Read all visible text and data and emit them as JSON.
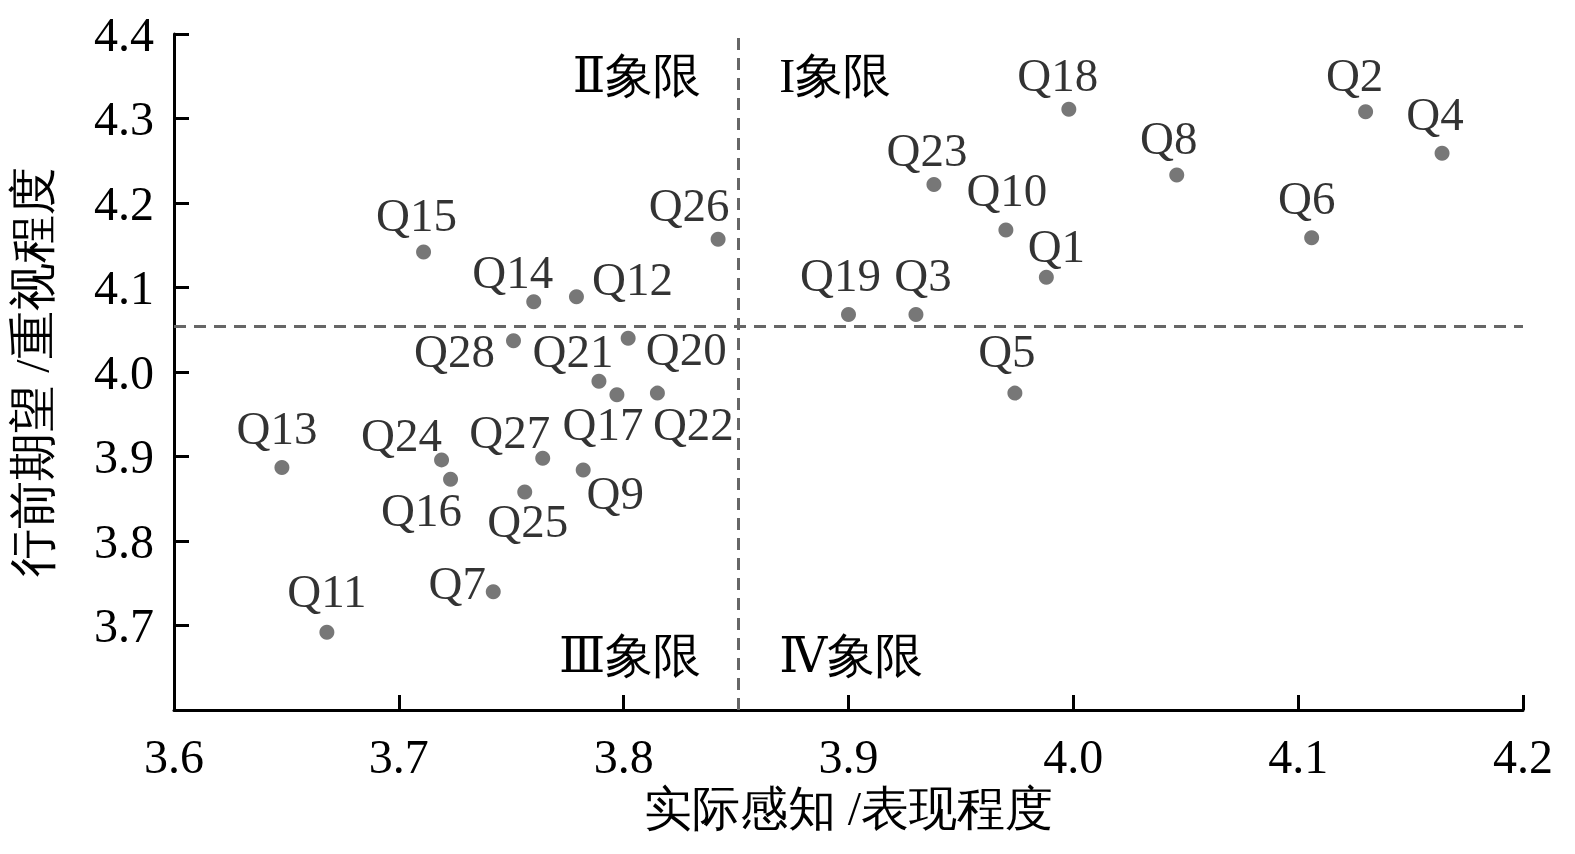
{
  "chart_data": {
    "type": "scatter",
    "xlabel": "实际感知 /表现程度",
    "ylabel": "行前期望 /重视程度",
    "series": [
      {
        "name": "Q1",
        "color": "#555555",
        "x": [
          3.988
        ],
        "values": [
          4.112
        ]
      },
      {
        "name": "Q2",
        "color": "#555555",
        "x": [
          4.13
        ],
        "values": [
          4.308
        ]
      },
      {
        "name": "Q3",
        "color": "#555555",
        "x": [
          3.93
        ],
        "values": [
          4.068
        ]
      },
      {
        "name": "Q4",
        "color": "#555555",
        "x": [
          4.164
        ],
        "values": [
          4.259
        ]
      },
      {
        "name": "Q5",
        "color": "#555555",
        "x": [
          3.974
        ],
        "values": [
          3.975
        ]
      },
      {
        "name": "Q6",
        "color": "#555555",
        "x": [
          4.106
        ],
        "values": [
          4.159
        ]
      },
      {
        "name": "Q7",
        "color": "#555555",
        "x": [
          3.742
        ],
        "values": [
          3.74
        ]
      },
      {
        "name": "Q8",
        "color": "#555555",
        "x": [
          4.046
        ],
        "values": [
          4.233
        ]
      },
      {
        "name": "Q9",
        "color": "#555555",
        "x": [
          3.782
        ],
        "values": [
          3.884
        ]
      },
      {
        "name": "Q10",
        "color": "#555555",
        "x": [
          3.97
        ],
        "values": [
          4.168
        ]
      },
      {
        "name": "Q11",
        "color": "#555555",
        "x": [
          3.668
        ],
        "values": [
          3.692
        ]
      },
      {
        "name": "Q12",
        "color": "#555555",
        "x": [
          3.779
        ],
        "values": [
          4.089
        ]
      },
      {
        "name": "Q13",
        "color": "#555555",
        "x": [
          3.648
        ],
        "values": [
          3.887
        ]
      },
      {
        "name": "Q14",
        "color": "#555555",
        "x": [
          3.76
        ],
        "values": [
          4.083
        ]
      },
      {
        "name": "Q15",
        "color": "#555555",
        "x": [
          3.711
        ],
        "values": [
          4.142
        ]
      },
      {
        "name": "Q16",
        "color": "#555555",
        "x": [
          3.723
        ],
        "values": [
          3.873
        ]
      },
      {
        "name": "Q17",
        "color": "#555555",
        "x": [
          3.797
        ],
        "values": [
          3.973
        ]
      },
      {
        "name": "Q18",
        "color": "#555555",
        "x": [
          3.998
        ],
        "values": [
          4.311
        ]
      },
      {
        "name": "Q19",
        "color": "#555555",
        "x": [
          3.9
        ],
        "values": [
          4.068
        ]
      },
      {
        "name": "Q20",
        "color": "#555555",
        "x": [
          3.802
        ],
        "values": [
          4.04
        ]
      },
      {
        "name": "Q21",
        "color": "#555555",
        "x": [
          3.789
        ],
        "values": [
          3.989
        ]
      },
      {
        "name": "Q22",
        "color": "#555555",
        "x": [
          3.815
        ],
        "values": [
          3.975
        ]
      },
      {
        "name": "Q23",
        "color": "#555555",
        "x": [
          3.938
        ],
        "values": [
          4.222
        ]
      },
      {
        "name": "Q24",
        "color": "#555555",
        "x": [
          3.719
        ],
        "values": [
          3.896
        ]
      },
      {
        "name": "Q25",
        "color": "#555555",
        "x": [
          3.756
        ],
        "values": [
          3.858
        ]
      },
      {
        "name": "Q26",
        "color": "#555555",
        "x": [
          3.842
        ],
        "values": [
          4.157
        ]
      },
      {
        "name": "Q27",
        "color": "#555555",
        "x": [
          3.764
        ],
        "values": [
          3.898
        ]
      },
      {
        "name": "Q28",
        "color": "#555555",
        "x": [
          3.751
        ],
        "values": [
          4.037
        ]
      }
    ],
    "xlim": [
      3.6,
      4.2
    ],
    "xticks": [
      3.6,
      3.7,
      3.8,
      3.9,
      {
        "value": 4,
        "label": "4.0"
      },
      4.1,
      4.2
    ],
    "ylim": [
      3.6,
      4.4
    ],
    "yticks": [
      3.7,
      3.8,
      3.9,
      {
        "value": 4,
        "label": "4.0"
      },
      4.1,
      4.2,
      4.3,
      4.4
    ],
    "ref_lines": [
      {
        "axis": "x",
        "value": 3.851,
        "color": "#666666",
        "line_style": "dashed"
      },
      {
        "axis": "y",
        "value": 4.054,
        "color": "#666666",
        "line_style": "dashed"
      }
    ],
    "annotations": [
      "Ⅱ象限",
      "I象限",
      "Ⅲ象限",
      "Ⅳ象限"
    ],
    "grid": false,
    "legend": false,
    "marker": "circle"
  }
}
